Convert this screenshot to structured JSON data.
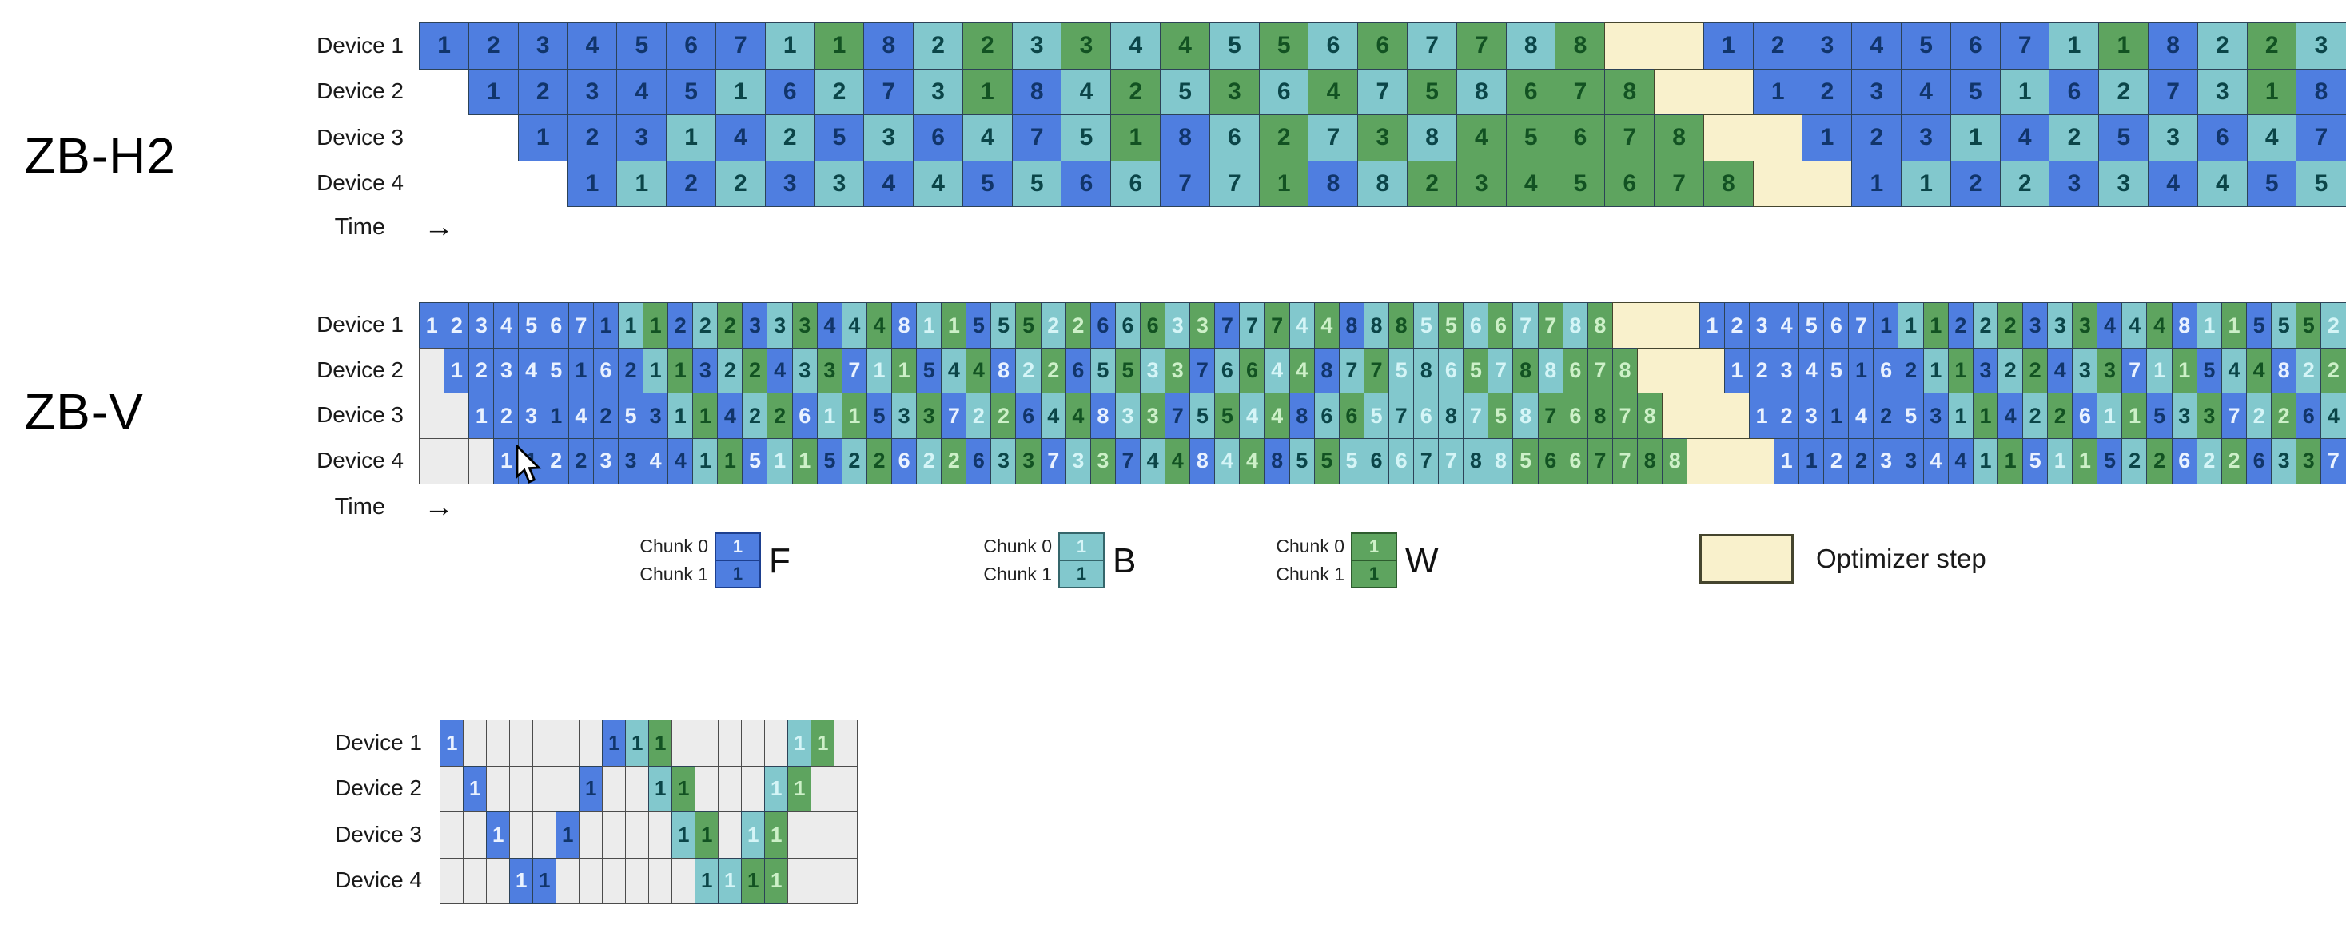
{
  "labels": {
    "h2_title": "ZB-H2",
    "v_title": "ZB-V",
    "time": "Time",
    "arrow": "→"
  },
  "legend": {
    "chunk0": "Chunk 0",
    "chunk1": "Chunk 1",
    "f": "F",
    "b": "B",
    "w": "W",
    "optimizer": "Optimizer step",
    "sample_label": "1"
  },
  "colors": {
    "f": "#4f7ee0",
    "b": "#82c8cd",
    "w": "#5ea45f",
    "opt": "#f9f1cc",
    "gap": "#ececec",
    "border_cell": "#2c4257",
    "border_gap": "#4c4c4c",
    "border_opt": "#45452e",
    "text_light_f": "#eaf2ff",
    "text_light_b": "#d5f5f7",
    "text_light_w": "#cdf0c8",
    "text_dark_f": "#11356b",
    "text_dark_b": "#0b4548",
    "text_dark_w": "#125222"
  },
  "schedules": {
    "zbh2": {
      "rows": [
        {
          "label": "Device 1",
          "offset": 0,
          "lead": "blank",
          "cells": [
            "F:1",
            "F:2",
            "F:3",
            "F:4",
            "F:5",
            "F:6",
            "F:7",
            "B:1",
            "W:1",
            "F:8",
            "B:2",
            "W:2",
            "B:3",
            "W:3",
            "B:4",
            "W:4",
            "B:5",
            "W:5",
            "B:6",
            "W:6",
            "B:7",
            "W:7",
            "B:8",
            "W:8",
            "OPT*2",
            "F:1",
            "F:2",
            "F:3",
            "F:4",
            "F:5",
            "F:6",
            "F:7",
            "B:1",
            "W:1",
            "F:8",
            "B:2",
            "W:2",
            "B:3"
          ]
        },
        {
          "label": "Device 2",
          "offset": 1,
          "lead": "blank",
          "cells": [
            "F:1",
            "F:2",
            "F:3",
            "F:4",
            "F:5",
            "B:1",
            "F:6",
            "B:2",
            "F:7",
            "B:3",
            "W:1",
            "F:8",
            "B:4",
            "W:2",
            "B:5",
            "W:3",
            "B:6",
            "W:4",
            "B:7",
            "W:5",
            "B:8",
            "W:6",
            "W:7",
            "W:8",
            "OPT*2",
            "F:1",
            "F:2",
            "F:3",
            "F:4",
            "F:5",
            "B:1",
            "F:6",
            "B:2",
            "F:7",
            "B:3",
            "W:1",
            "F:8"
          ]
        },
        {
          "label": "Device 3",
          "offset": 2,
          "lead": "blank",
          "cells": [
            "F:1",
            "F:2",
            "F:3",
            "B:1",
            "F:4",
            "B:2",
            "F:5",
            "B:3",
            "F:6",
            "B:4",
            "F:7",
            "B:5",
            "W:1",
            "F:8",
            "B:6",
            "W:2",
            "B:7",
            "W:3",
            "B:8",
            "W:4",
            "W:5",
            "W:6",
            "W:7",
            "W:8",
            "OPT*2",
            "F:1",
            "F:2",
            "F:3",
            "B:1",
            "F:4",
            "B:2",
            "F:5",
            "B:3",
            "F:6",
            "B:4",
            "F:7"
          ]
        },
        {
          "label": "Device 4",
          "offset": 3,
          "lead": "blank",
          "cells": [
            "F:1",
            "B:1",
            "F:2",
            "B:2",
            "F:3",
            "B:3",
            "F:4",
            "B:4",
            "F:5",
            "B:5",
            "F:6",
            "B:6",
            "F:7",
            "B:7",
            "W:1",
            "F:8",
            "B:8",
            "W:2",
            "W:3",
            "W:4",
            "W:5",
            "W:6",
            "W:7",
            "W:8",
            "OPT*2",
            "F:1",
            "B:1",
            "F:2",
            "B:2",
            "F:3",
            "B:3",
            "F:4",
            "B:4",
            "F:5",
            "B:5"
          ]
        }
      ]
    },
    "zbv": {
      "rows": [
        {
          "label": "Device 1",
          "offset": 0,
          "lead": "gray",
          "cells": [
            "F0:1",
            "F0:2",
            "F0:3",
            "F0:4",
            "F0:5",
            "F0:6",
            "F0:7",
            "F1:1",
            "B1:1",
            "W1:1",
            "F1:2",
            "B1:2",
            "W1:2",
            "F1:3",
            "B1:3",
            "W1:3",
            "F1:4",
            "B1:4",
            "W1:4",
            "F0:8",
            "B0:1",
            "W0:1",
            "F1:5",
            "B1:5",
            "W1:5",
            "B0:2",
            "W0:2",
            "F1:6",
            "B1:6",
            "W1:6",
            "B0:3",
            "W0:3",
            "F1:7",
            "B1:7",
            "W1:7",
            "B0:4",
            "W0:4",
            "F1:8",
            "B1:8",
            "W1:8",
            "B0:5",
            "W0:5",
            "B0:6",
            "W0:6",
            "B0:7",
            "W0:7",
            "B0:8",
            "W0:8",
            "OPT*3.5",
            "F0:1",
            "F0:2",
            "F0:3",
            "F0:4",
            "F0:5",
            "F0:6",
            "F0:7",
            "F1:1",
            "B1:1",
            "W1:1",
            "F1:2",
            "B1:2",
            "W1:2",
            "F1:3",
            "B1:3",
            "W1:3",
            "F1:4",
            "B1:4",
            "W1:4",
            "F0:8",
            "B0:1",
            "W0:1",
            "F1:5",
            "B1:5",
            "W1:5",
            "B0:2"
          ]
        },
        {
          "label": "Device 2",
          "offset": 1,
          "lead": "gray",
          "cells": [
            "F0:1",
            "F0:2",
            "F0:3",
            "F0:4",
            "F0:5",
            "F1:1",
            "F0:6",
            "F1:2",
            "B1:1",
            "W1:1",
            "F1:3",
            "B1:2",
            "W1:2",
            "F1:4",
            "B1:3",
            "W1:3",
            "F0:7",
            "B0:1",
            "W0:1",
            "F1:5",
            "B1:4",
            "W1:4",
            "F0:8",
            "B0:2",
            "W0:2",
            "F1:6",
            "B1:5",
            "W1:5",
            "B0:3",
            "W0:3",
            "F1:7",
            "B1:6",
            "W1:6",
            "B0:4",
            "W0:4",
            "F1:8",
            "B1:7",
            "W1:7",
            "B0:5",
            "B1:8",
            "B0:6",
            "W0:5",
            "B0:7",
            "W1:8",
            "B0:8",
            "W0:6",
            "W0:7",
            "W0:8",
            "OPT*3.5",
            "F0:1",
            "F0:2",
            "F0:3",
            "F0:4",
            "F0:5",
            "F1:1",
            "F0:6",
            "F1:2",
            "B1:1",
            "W1:1",
            "F1:3",
            "B1:2",
            "W1:2",
            "F1:4",
            "B1:3",
            "W1:3",
            "F0:7",
            "B0:1",
            "W0:1",
            "F1:5",
            "B1:4",
            "W1:4",
            "F0:8",
            "B0:2",
            "W0:2"
          ]
        },
        {
          "label": "Device 3",
          "offset": 2,
          "lead": "gray",
          "cells": [
            "F0:1",
            "F0:2",
            "F0:3",
            "F1:1",
            "F0:4",
            "F1:2",
            "F0:5",
            "F1:3",
            "B1:1",
            "W1:1",
            "F1:4",
            "B1:2",
            "W1:2",
            "F0:6",
            "B0:1",
            "W0:1",
            "F1:5",
            "B1:3",
            "W1:3",
            "F0:7",
            "B0:2",
            "W0:2",
            "F1:6",
            "B1:4",
            "W1:4",
            "F0:8",
            "B0:3",
            "W0:3",
            "F1:7",
            "B1:5",
            "W1:5",
            "B0:4",
            "W0:4",
            "F1:8",
            "B1:6",
            "W1:6",
            "B0:5",
            "B1:7",
            "B0:6",
            "B1:8",
            "B0:7",
            "W0:5",
            "B0:8",
            "W1:7",
            "W0:6",
            "W1:8",
            "W0:7",
            "W0:8",
            "OPT*3.5",
            "F0:1",
            "F0:2",
            "F0:3",
            "F1:1",
            "F0:4",
            "F1:2",
            "F0:5",
            "F1:3",
            "B1:1",
            "W1:1",
            "F1:4",
            "B1:2",
            "W1:2",
            "F0:6",
            "B0:1",
            "W0:1",
            "F1:5",
            "B1:3",
            "W1:3",
            "F0:7",
            "B0:2",
            "W0:2",
            "F1:6",
            "B1:4"
          ]
        },
        {
          "label": "Device 4",
          "offset": 3,
          "lead": "gray",
          "cells": [
            "F0:1",
            "F1:1",
            "F0:2",
            "F1:2",
            "F0:3",
            "F1:3",
            "F0:4",
            "F1:4",
            "B1:1",
            "W1:1",
            "F0:5",
            "B0:1",
            "W0:1",
            "F1:5",
            "B1:2",
            "W1:2",
            "F0:6",
            "B0:2",
            "W0:2",
            "F1:6",
            "B1:3",
            "W1:3",
            "F0:7",
            "B0:3",
            "W0:3",
            "F1:7",
            "B1:4",
            "W1:4",
            "F0:8",
            "B0:4",
            "W0:4",
            "F1:8",
            "B1:5",
            "W1:5",
            "B0:5",
            "B1:6",
            "B0:6",
            "B1:7",
            "B0:7",
            "B1:8",
            "B0:8",
            "W0:5",
            "W1:6",
            "W0:6",
            "W1:7",
            "W0:7",
            "W1:8",
            "W0:8",
            "OPT*3.5",
            "F0:1",
            "F1:1",
            "F0:2",
            "F1:2",
            "F0:3",
            "F1:3",
            "F0:4",
            "F1:4",
            "B1:1",
            "W1:1",
            "F0:5",
            "B0:1",
            "W0:1",
            "F1:5",
            "B1:2",
            "W1:2",
            "F0:6",
            "B0:2",
            "W0:2",
            "F1:6",
            "B1:3",
            "W1:3",
            "F0:7"
          ]
        }
      ]
    },
    "mini": {
      "rows": [
        {
          "label": "Device 1",
          "offset": 0,
          "lead": "blank",
          "cells": [
            "F0:1",
            "E",
            "E",
            "E",
            "E",
            "E",
            "E",
            "F1:1",
            "B1:1",
            "W1:1",
            "E",
            "E",
            "E",
            "E",
            "E",
            "B0:1",
            "W0:1",
            "E"
          ]
        },
        {
          "label": "Device 2",
          "offset": 0,
          "lead": "blank",
          "cells": [
            "E",
            "F0:1",
            "E",
            "E",
            "E",
            "E",
            "F1:1",
            "E",
            "E",
            "B1:1",
            "W1:1",
            "E",
            "E",
            "E",
            "B0:1",
            "W0:1",
            "E",
            "E"
          ]
        },
        {
          "label": "Device 3",
          "offset": 0,
          "lead": "blank",
          "cells": [
            "E",
            "E",
            "F0:1",
            "E",
            "E",
            "F1:1",
            "E",
            "E",
            "E",
            "E",
            "B1:1",
            "W1:1",
            "E",
            "B0:1",
            "W0:1",
            "E",
            "E",
            "E"
          ]
        },
        {
          "label": "Device 4",
          "offset": 0,
          "lead": "blank",
          "cells": [
            "E",
            "E",
            "E",
            "F0:1",
            "F1:1",
            "E",
            "E",
            "E",
            "E",
            "E",
            "E",
            "B1:1",
            "B0:1",
            "W1:1",
            "W0:1",
            "E",
            "E",
            "E"
          ]
        }
      ]
    }
  }
}
